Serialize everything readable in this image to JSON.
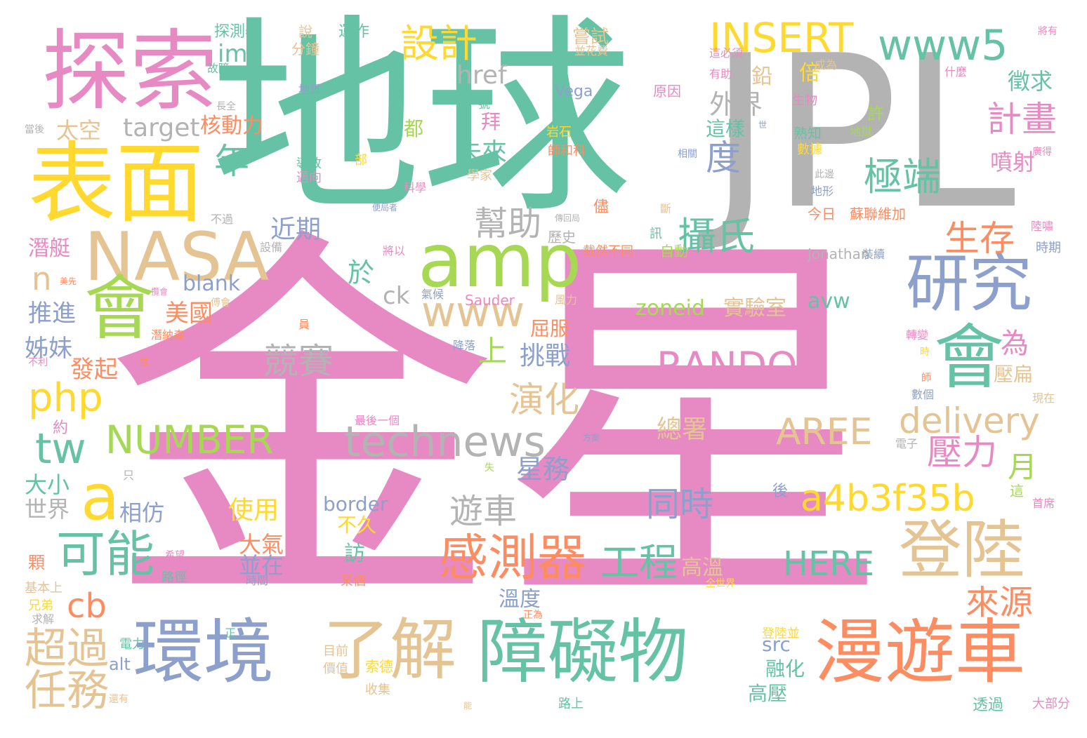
{
  "palette": {
    "green": "#66c2a5",
    "orange": "#fc8d62",
    "blue": "#8da0cb",
    "pink": "#e78ac3",
    "lime": "#a6d854",
    "yellow": "#ffd92f",
    "tan": "#e5c494",
    "gray": "#b3b3b3"
  },
  "words": [
    {
      "text": "金星",
      "color": "pink"
    },
    {
      "text": "地球",
      "color": "green"
    },
    {
      "text": "JPL",
      "color": "gray"
    },
    {
      "text": "探索",
      "color": "pink"
    },
    {
      "text": "表面",
      "color": "yellow"
    },
    {
      "text": "NASA",
      "color": "tan"
    },
    {
      "text": "amp",
      "color": "lime"
    },
    {
      "text": "會",
      "color": "lime"
    },
    {
      "text": "會",
      "color": "green"
    },
    {
      "text": "研究",
      "color": "blue"
    },
    {
      "text": "登陸",
      "color": "tan"
    },
    {
      "text": "環境",
      "color": "blue"
    },
    {
      "text": "了解",
      "color": "tan"
    },
    {
      "text": "障礙物",
      "color": "green"
    },
    {
      "text": "漫遊車",
      "color": "orange"
    },
    {
      "text": "technews",
      "color": "gray"
    },
    {
      "text": "www",
      "color": "tan"
    },
    {
      "text": "www5",
      "color": "green"
    },
    {
      "text": "INSERT",
      "color": "yellow"
    },
    {
      "text": "RANDOM",
      "color": "pink"
    },
    {
      "text": "NUMBER",
      "color": "lime"
    },
    {
      "text": "delivery",
      "color": "tan"
    },
    {
      "text": "AREE",
      "color": "tan"
    },
    {
      "text": "a4b3f35b",
      "color": "yellow"
    },
    {
      "text": "HERE",
      "color": "green"
    },
    {
      "text": "zoneid",
      "color": "lime"
    },
    {
      "text": "avw",
      "color": "green"
    },
    {
      "text": "實驗室",
      "color": "tan"
    },
    {
      "text": "感測器",
      "color": "orange"
    },
    {
      "text": "可能",
      "color": "green"
    },
    {
      "text": "工程",
      "color": "green"
    },
    {
      "text": "設計",
      "color": "yellow"
    },
    {
      "text": "極端",
      "color": "green"
    },
    {
      "text": "攝氏",
      "color": "green"
    },
    {
      "text": "幫助",
      "color": "gray"
    },
    {
      "text": "生存",
      "color": "orange"
    },
    {
      "text": "壓力",
      "color": "pink"
    },
    {
      "text": "計畫",
      "color": "pink"
    },
    {
      "text": "演化",
      "color": "tan"
    },
    {
      "text": "遊車",
      "color": "gray"
    },
    {
      "text": "同時",
      "color": "blue"
    },
    {
      "text": "競賽",
      "color": "gray"
    },
    {
      "text": "來源",
      "color": "orange"
    },
    {
      "text": "超過",
      "color": "tan"
    },
    {
      "text": "任務",
      "color": "tan"
    },
    {
      "text": "美國",
      "color": "orange"
    },
    {
      "text": "推進",
      "color": "blue"
    },
    {
      "text": "姊妹",
      "color": "blue"
    },
    {
      "text": "發起",
      "color": "orange"
    },
    {
      "text": "未來",
      "color": "green"
    },
    {
      "text": "近期",
      "color": "blue"
    },
    {
      "text": "外界",
      "color": "gray"
    },
    {
      "text": "度",
      "color": "blue"
    },
    {
      "text": "年",
      "color": "green"
    },
    {
      "text": "太空",
      "color": "tan"
    },
    {
      "text": "target",
      "color": "gray"
    },
    {
      "text": "核動力",
      "color": "orange"
    },
    {
      "text": "img",
      "color": "green"
    },
    {
      "text": "href",
      "color": "gray"
    },
    {
      "text": "blank",
      "color": "blue"
    },
    {
      "text": "ck",
      "color": "gray"
    },
    {
      "text": "php",
      "color": "yellow"
    },
    {
      "text": "tw",
      "color": "green"
    },
    {
      "text": "a",
      "color": "yellow"
    },
    {
      "text": "n",
      "color": "tan"
    },
    {
      "text": "cb",
      "color": "orange"
    },
    {
      "text": "上",
      "color": "lime"
    },
    {
      "text": "挑戰",
      "color": "blue"
    },
    {
      "text": "於",
      "color": "green"
    },
    {
      "text": "星務",
      "color": "blue"
    },
    {
      "text": "月",
      "color": "lime"
    },
    {
      "text": "為",
      "color": "pink"
    },
    {
      "text": "總署",
      "color": "tan"
    },
    {
      "text": "使用",
      "color": "yellow"
    },
    {
      "text": "相仿",
      "color": "blue"
    },
    {
      "text": "大氣",
      "color": "orange"
    },
    {
      "text": "並在",
      "color": "blue"
    },
    {
      "text": "大小",
      "color": "green"
    },
    {
      "text": "世界",
      "color": "gray"
    },
    {
      "text": "潛艇",
      "color": "pink"
    },
    {
      "text": "高溫",
      "color": "tan"
    },
    {
      "text": "溫度",
      "color": "blue"
    },
    {
      "text": "融化",
      "color": "green"
    },
    {
      "text": "高壓",
      "color": "green"
    },
    {
      "text": "徵求",
      "color": "green"
    },
    {
      "text": "噴射",
      "color": "pink"
    },
    {
      "text": "倍",
      "color": "yellow"
    },
    {
      "text": "鉛",
      "color": "tan"
    },
    {
      "text": "這樣",
      "color": "green"
    },
    {
      "text": "都",
      "color": "lime"
    },
    {
      "text": "拜",
      "color": "pink"
    },
    {
      "text": "許",
      "color": "lime"
    },
    {
      "text": "屈服",
      "color": "orange"
    },
    {
      "text": "壓扁",
      "color": "tan"
    },
    {
      "text": "訪",
      "color": "green"
    },
    {
      "text": "不久",
      "color": "yellow"
    },
    {
      "text": "border",
      "color": "blue"
    },
    {
      "text": "src",
      "color": "blue"
    },
    {
      "text": "alt",
      "color": "blue"
    },
    {
      "text": "嘗試",
      "color": "tan"
    },
    {
      "text": "運作",
      "color": "green"
    },
    {
      "text": "探測器",
      "color": "green"
    },
    {
      "text": "分鐘",
      "color": "tan"
    },
    {
      "text": "說",
      "color": "tan"
    },
    {
      "text": "Vega",
      "color": "blue"
    },
    {
      "text": "原因",
      "color": "pink"
    },
    {
      "text": "Sauder",
      "color": "pink"
    },
    {
      "text": "Jonathan",
      "color": "gray"
    },
    {
      "text": "儘",
      "color": "orange"
    },
    {
      "text": "歷史",
      "color": "gray"
    },
    {
      "text": "今日",
      "color": "orange"
    },
    {
      "text": "自動",
      "color": "lime"
    },
    {
      "text": "顆",
      "color": "orange"
    },
    {
      "text": "約",
      "color": "pink"
    },
    {
      "text": "後",
      "color": "blue"
    },
    {
      "text": "這",
      "color": "lime"
    },
    {
      "text": "後",
      "color": "orange"
    },
    {
      "text": "生物",
      "color": "pink"
    },
    {
      "text": "地獄",
      "color": "lime"
    },
    {
      "text": "熟知",
      "color": "green"
    },
    {
      "text": "數據",
      "color": "yellow"
    },
    {
      "text": "學家",
      "color": "tan"
    },
    {
      "text": "科學",
      "color": "pink"
    },
    {
      "text": "岩石",
      "color": "yellow"
    },
    {
      "text": "導致",
      "color": "green"
    },
    {
      "text": "邁向",
      "color": "pink"
    },
    {
      "text": "蘇聯維加",
      "color": "orange"
    },
    {
      "text": "成為",
      "color": "tan"
    },
    {
      "text": "有助",
      "color": "pink"
    },
    {
      "text": "什麼",
      "color": "pink"
    },
    {
      "text": "時期",
      "color": "blue"
    },
    {
      "text": "現在",
      "color": "tan"
    },
    {
      "text": "路上",
      "color": "green"
    },
    {
      "text": "透過",
      "color": "green"
    },
    {
      "text": "大部分",
      "color": "pink"
    },
    {
      "text": "目前",
      "color": "tan"
    },
    {
      "text": "收集",
      "color": "tan"
    },
    {
      "text": "索德",
      "color": "yellow"
    },
    {
      "text": "登陸並",
      "color": "yellow"
    },
    {
      "text": "價值",
      "color": "tan"
    },
    {
      "text": "路徑",
      "color": "green"
    },
    {
      "text": "基本上",
      "color": "tan"
    },
    {
      "text": "兄弟",
      "color": "yellow"
    },
    {
      "text": "求解",
      "color": "gray"
    },
    {
      "text": "電力",
      "color": "green"
    },
    {
      "text": "還有",
      "color": "tan"
    },
    {
      "text": "某個",
      "color": "orange"
    },
    {
      "text": "時間",
      "color": "blue"
    },
    {
      "text": "正為",
      "color": "orange"
    },
    {
      "text": "最後一個",
      "color": "pink"
    },
    {
      "text": "降落",
      "color": "blue"
    },
    {
      "text": "風力",
      "color": "tan"
    },
    {
      "text": "氣候",
      "color": "blue"
    },
    {
      "text": "數個",
      "color": "blue"
    },
    {
      "text": "電子",
      "color": "gray"
    },
    {
      "text": "首席",
      "color": "pink"
    },
    {
      "text": "現象",
      "color": "pink"
    },
    {
      "text": "轉變",
      "color": "pink"
    },
    {
      "text": "陸嘯",
      "color": "pink"
    },
    {
      "text": "不過",
      "color": "gray"
    },
    {
      "text": "設備",
      "color": "gray"
    },
    {
      "text": "當後",
      "color": "gray"
    },
    {
      "text": "員",
      "color": "orange"
    },
    {
      "text": "傅會",
      "color": "tan"
    },
    {
      "text": "地質",
      "color": "blue"
    },
    {
      "text": "號",
      "color": "green"
    },
    {
      "text": "將有",
      "color": "pink"
    },
    {
      "text": "並花費",
      "color": "tan"
    },
    {
      "text": "這必須",
      "color": "pink"
    },
    {
      "text": "斷",
      "color": "tan"
    },
    {
      "text": "訊",
      "color": "green"
    },
    {
      "text": "潛納森",
      "color": "orange"
    },
    {
      "text": "截然不同",
      "color": "orange"
    },
    {
      "text": "將以",
      "color": "pink"
    },
    {
      "text": "師和科",
      "color": "orange"
    },
    {
      "text": "部",
      "color": "yellow"
    },
    {
      "text": "只",
      "color": "gray"
    },
    {
      "text": "失",
      "color": "lime"
    },
    {
      "text": "感測",
      "color": "pink"
    },
    {
      "text": "方案",
      "color": "blue"
    },
    {
      "text": "地形",
      "color": "blue"
    },
    {
      "text": "此邊",
      "color": "gray"
    },
    {
      "text": "相關",
      "color": "blue"
    },
    {
      "text": "這",
      "color": "lime"
    },
    {
      "text": "時",
      "color": "yellow"
    },
    {
      "text": "師",
      "color": "orange"
    },
    {
      "text": "世",
      "color": "blue"
    },
    {
      "text": "建造",
      "color": "tan"
    },
    {
      "text": "希望",
      "color": "pink"
    },
    {
      "text": "全世界",
      "color": "yellow"
    },
    {
      "text": "上",
      "color": "orange"
    },
    {
      "text": "正",
      "color": "green"
    },
    {
      "text": "並",
      "color": "orange"
    },
    {
      "text": "不利",
      "color": "pink"
    },
    {
      "text": "美先",
      "color": "orange"
    },
    {
      "text": "便局者",
      "color": "blue"
    },
    {
      "text": "傳回局",
      "color": "gray"
    },
    {
      "text": "裝續",
      "color": "blue"
    },
    {
      "text": "攬會",
      "color": "pink"
    },
    {
      "text": "能",
      "color": "tan"
    },
    {
      "text": "故障",
      "color": "green"
    },
    {
      "text": "廣得",
      "color": "pink"
    },
    {
      "text": "長全",
      "color": "gray"
    }
  ]
}
